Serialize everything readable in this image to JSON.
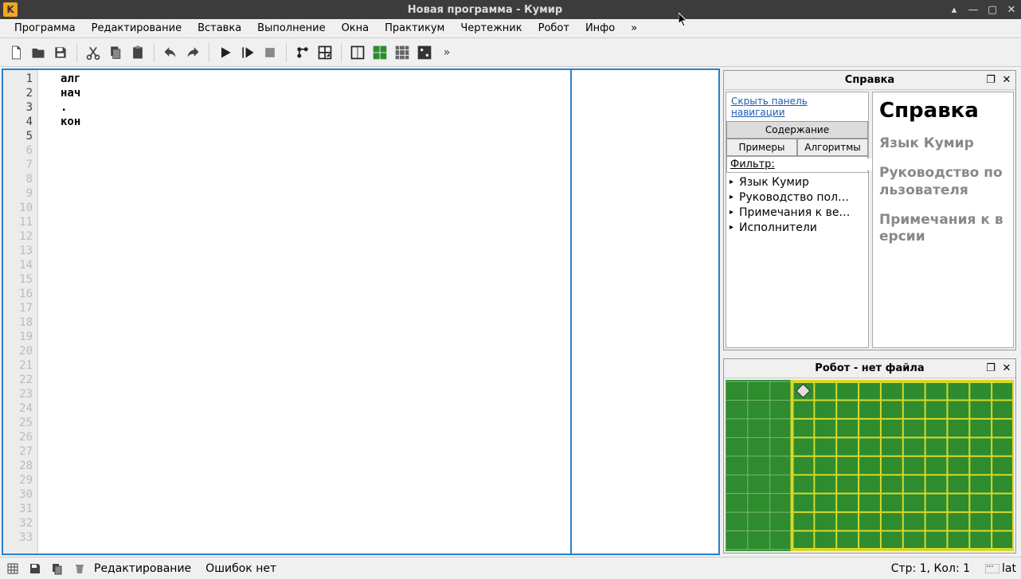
{
  "window": {
    "title": "Новая программа - Кумир",
    "app_icon_letter": "K"
  },
  "menu": {
    "items": [
      "Программа",
      "Редактирование",
      "Вставка",
      "Выполнение",
      "Окна",
      "Практикум",
      "Чертежник",
      "Робот",
      "Инфо",
      "»"
    ]
  },
  "code": {
    "lines": [
      "алг",
      "нач",
      ".",
      "кон",
      ""
    ],
    "visible_line_count": 33
  },
  "help_panel": {
    "title": "Справка",
    "hide_nav_link": "Скрыть панель навигации",
    "tabs": {
      "contents": "Содержание",
      "examples": "Примеры",
      "algorithms": "Алгоритмы"
    },
    "active_tab": "contents",
    "filter_label": "Фильтр:",
    "filter_value": "",
    "tree_items": [
      "Язык Кумир",
      "Руководство пол…",
      "Примечания к ве…",
      "Исполнители"
    ],
    "content": {
      "heading": "Справка",
      "sections": [
        "Язык Кумир",
        "Руководство пользователя",
        "Примечания к версии"
      ]
    }
  },
  "robot_panel": {
    "title": "Робот - нет файла",
    "grid": {
      "bg_color": "#2e8b2e",
      "line_color_thin": "#7ab97a",
      "line_color_thick": "#d8d82a",
      "cols": 13,
      "rows": 9,
      "inner_start_col": 3,
      "inner_end_col": 12,
      "inner_start_row": 0,
      "inner_end_row": 8,
      "robot_col": 3,
      "robot_row": 0
    }
  },
  "statusbar": {
    "mode": "Редактирование",
    "errors": "Ошибок нет",
    "position": "Стр: 1, Кол: 1",
    "lang": "lat"
  }
}
